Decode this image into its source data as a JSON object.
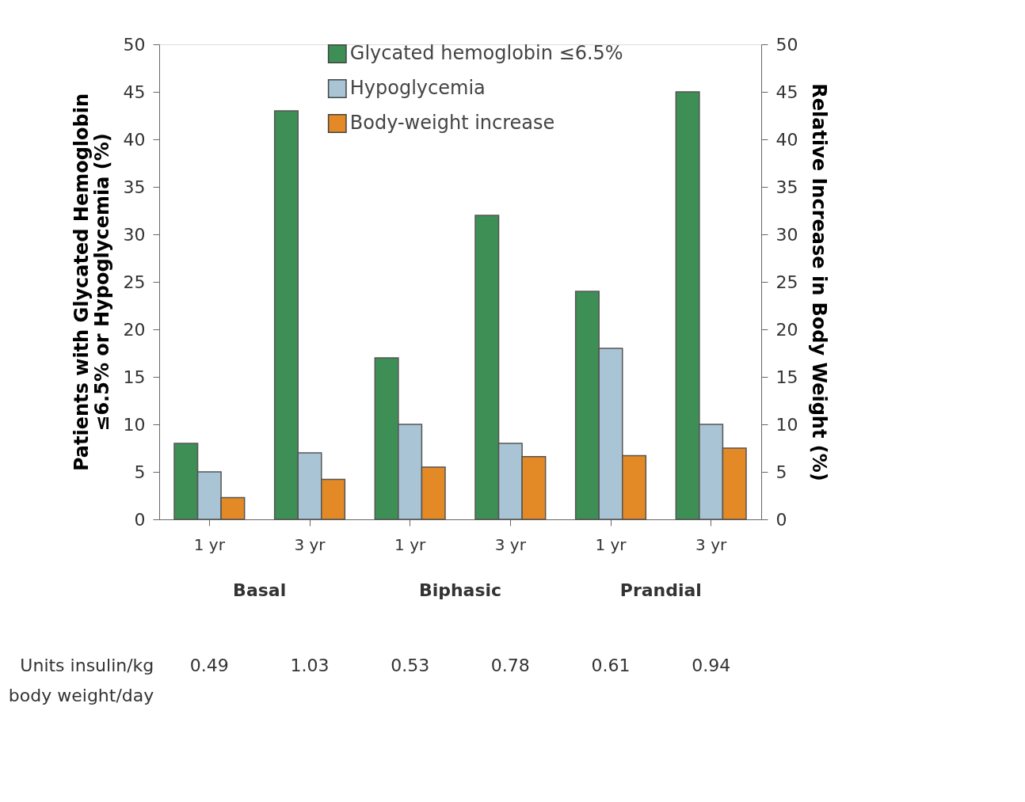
{
  "chart_data": {
    "type": "bar",
    "categories": [
      "1 yr",
      "3 yr",
      "1 yr",
      "3 yr",
      "1 yr",
      "3 yr"
    ],
    "series": [
      {
        "name": "Glycated hemoglobin ≤6.5%",
        "color": "#3d8f55",
        "values": [
          8,
          43,
          17,
          32,
          24,
          45
        ]
      },
      {
        "name": "Hypoglycemia",
        "color": "#a9c4d4",
        "values": [
          5,
          7,
          10,
          8,
          18,
          10
        ]
      },
      {
        "name": "Body-weight increase",
        "color": "#e38a26",
        "values": [
          2.3,
          4.2,
          5.5,
          6.6,
          6.7,
          7.5
        ],
        "axis": "y2"
      }
    ],
    "ylabel": "Patients with Glycated Hemoglobin ≤6.5% or Hypoglycemia (%)",
    "y2label": "Relative Increase in Body Weight (%)",
    "ylim": [
      0,
      50
    ],
    "yticks": [
      0,
      5,
      10,
      15,
      20,
      25,
      30,
      35,
      40,
      45,
      50
    ],
    "y2lim": [
      0,
      50
    ],
    "y2ticks": [
      0,
      5,
      10,
      15,
      20,
      25,
      30,
      35,
      40,
      45,
      50
    ],
    "annotations": [
      "Basal",
      "Biphasic",
      "Prandial",
      "Units insulin/kg body weight/day",
      "0.49",
      "1.03",
      "0.53",
      "0.78",
      "0.61",
      "0.94"
    ],
    "legend": "top",
    "grid": false
  }
}
